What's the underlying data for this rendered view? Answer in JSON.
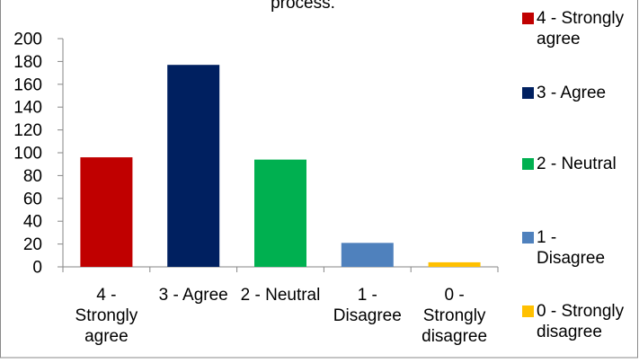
{
  "chart_data": {
    "type": "bar",
    "title": "process.",
    "categories": [
      "4 - Strongly agree",
      "3 - Agree",
      "2 - Neutral",
      "1 - Disagree",
      "0 - Strongly disagree"
    ],
    "category_label_lines": [
      [
        "4 -",
        "Strongly",
        "agree"
      ],
      [
        "3 - Agree"
      ],
      [
        "2 - Neutral"
      ],
      [
        "1 -",
        "Disagree"
      ],
      [
        "0 -",
        "Strongly",
        "disagree"
      ]
    ],
    "series": [
      {
        "values": [
          96,
          177,
          94,
          21,
          4
        ]
      }
    ],
    "colors": [
      "#c00000",
      "#002060",
      "#00b050",
      "#4f81bd",
      "#ffc000"
    ],
    "ylim": [
      0,
      200
    ],
    "y_ticks": [
      0,
      20,
      40,
      60,
      80,
      100,
      120,
      140,
      160,
      180,
      200
    ],
    "xlabel": "",
    "ylabel": "",
    "grid": false,
    "legend": {
      "position": "right",
      "entries": [
        {
          "lines": [
            "4 - Strongly",
            "agree"
          ],
          "color": "#c00000"
        },
        {
          "lines": [
            "3 - Agree"
          ],
          "color": "#002060"
        },
        {
          "lines": [
            "2 - Neutral"
          ],
          "color": "#00b050"
        },
        {
          "lines": [
            "1 -",
            "Disagree"
          ],
          "color": "#4f81bd"
        },
        {
          "lines": [
            "0 - Strongly",
            "disagree"
          ],
          "color": "#ffc000"
        }
      ]
    }
  }
}
